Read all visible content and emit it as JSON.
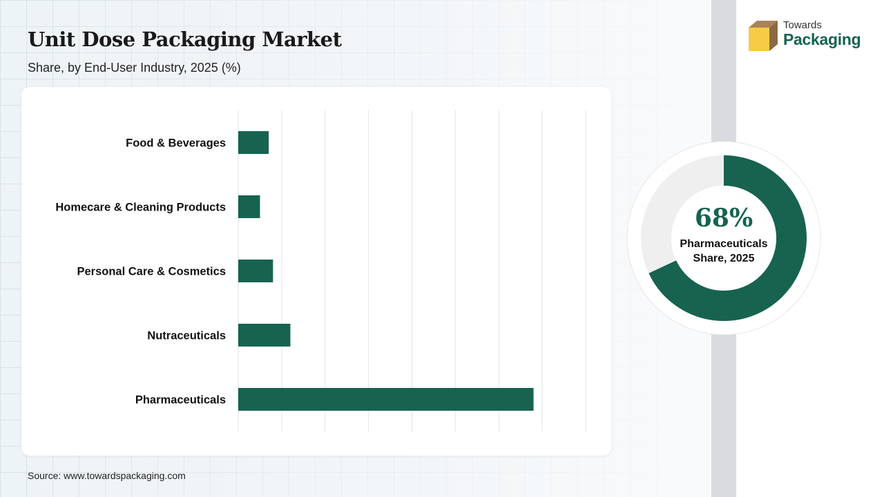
{
  "header": {
    "title": "Unit Dose Packaging Market",
    "subtitle": "Share, by End-User Industry, 2025 (%)"
  },
  "logo": {
    "line1": "Towards",
    "line2": "Packaging",
    "icon": "box-icon"
  },
  "source": "Source: www.towardspackaging.com",
  "colors": {
    "bar": "#17634f",
    "donut_track": "#efefef",
    "accent": "#17634f",
    "logo_box_top": "#a9835a",
    "logo_box_front": "#f6cc46"
  },
  "chart_data": [
    {
      "type": "bar",
      "orientation": "horizontal",
      "categories": [
        "Food & Beverages",
        "Homecare & Cleaning Products",
        "Personal Care & Cosmetics",
        "Nutraceuticals",
        "Pharmaceuticals"
      ],
      "values": [
        7,
        5,
        8,
        12,
        68
      ],
      "xlim": [
        0,
        80
      ],
      "grid": true,
      "title": "",
      "xlabel": "",
      "ylabel": ""
    },
    {
      "type": "pie",
      "style": "donut",
      "slices": [
        {
          "label": "Pharmaceuticals",
          "value": 68
        }
      ],
      "center_value": "68%",
      "center_label": "Pharmaceuticals Share, 2025"
    }
  ]
}
